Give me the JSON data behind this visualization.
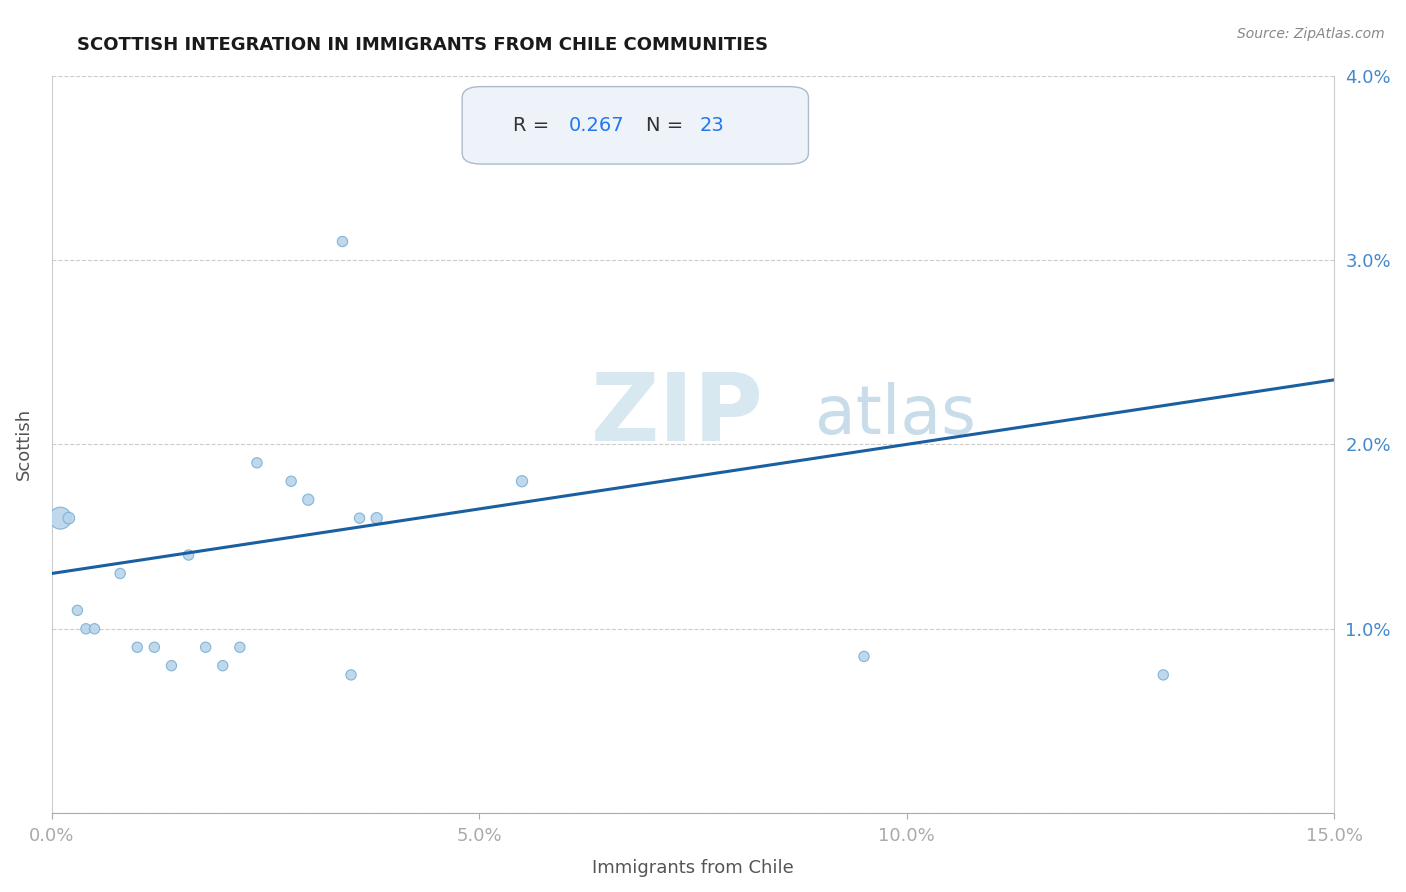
{
  "title": "SCOTTISH INTEGRATION IN IMMIGRANTS FROM CHILE COMMUNITIES",
  "source_text": "Source: ZipAtlas.com",
  "xlabel": "Immigrants from Chile",
  "ylabel": "Scottish",
  "R": 0.267,
  "N": 23,
  "xlim": [
    0.0,
    0.15
  ],
  "ylim": [
    0.0,
    0.04
  ],
  "xticks": [
    0.0,
    0.05,
    0.1,
    0.15
  ],
  "xtick_labels": [
    "0.0%",
    "5.0%",
    "10.0%",
    "15.0%"
  ],
  "yticks": [
    0.0,
    0.01,
    0.02,
    0.03,
    0.04
  ],
  "ytick_labels": [
    "",
    "1.0%",
    "2.0%",
    "3.0%",
    "4.0%"
  ],
  "scatter_x": [
    0.001,
    0.002,
    0.003,
    0.004,
    0.005,
    0.008,
    0.01,
    0.012,
    0.014,
    0.016,
    0.018,
    0.02,
    0.022,
    0.024,
    0.028,
    0.03,
    0.034,
    0.036,
    0.038,
    0.055,
    0.095,
    0.13,
    0.035
  ],
  "scatter_y": [
    0.016,
    0.016,
    0.011,
    0.01,
    0.01,
    0.013,
    0.009,
    0.009,
    0.008,
    0.014,
    0.009,
    0.008,
    0.009,
    0.019,
    0.018,
    0.017,
    0.031,
    0.016,
    0.016,
    0.018,
    0.0085,
    0.0075,
    0.0075
  ],
  "scatter_sizes": [
    250,
    70,
    55,
    55,
    55,
    55,
    55,
    55,
    55,
    55,
    55,
    55,
    55,
    55,
    55,
    65,
    55,
    55,
    65,
    65,
    55,
    55,
    55
  ],
  "scatter_color": "#b8d4ea",
  "scatter_edge_color": "#7aafd4",
  "trend_color": "#1a5fa0",
  "trend_intercept": 0.013,
  "trend_slope": 0.07,
  "grid_color": "#cccccc",
  "background_color": "#ffffff",
  "title_color": "#1a1a1a",
  "axis_label_color": "#555555",
  "tick_label_color": "#4488cc",
  "watermark_zip_color": "#d8e8f0",
  "watermark_atlas_color": "#c8dcea",
  "annotation_box_color": "#eef3fa",
  "annotation_border_color": "#aabbcc",
  "R_label_color": "#333333",
  "N_label_color": "#2277ee"
}
